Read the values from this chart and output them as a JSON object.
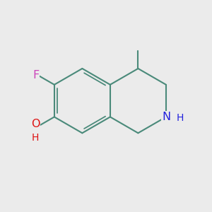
{
  "background_color": "#EBEBEB",
  "bond_color": "#4a8a7a",
  "bond_width": 1.5,
  "label_F": {
    "text": "F",
    "color": "#cc44bb",
    "fontsize": 11.5
  },
  "label_O": {
    "text": "O",
    "color": "#dd1111",
    "fontsize": 11.5
  },
  "label_H_o": {
    "text": "H",
    "color": "#dd1111",
    "fontsize": 10
  },
  "label_N": {
    "text": "N",
    "color": "#2222dd",
    "fontsize": 11.5
  },
  "label_H_n": {
    "text": "H",
    "color": "#2222dd",
    "fontsize": 10
  },
  "figsize": [
    3.0,
    3.0
  ],
  "dpi": 100,
  "xlim": [
    -2.0,
    2.0
  ],
  "ylim": [
    -2.0,
    2.0
  ]
}
